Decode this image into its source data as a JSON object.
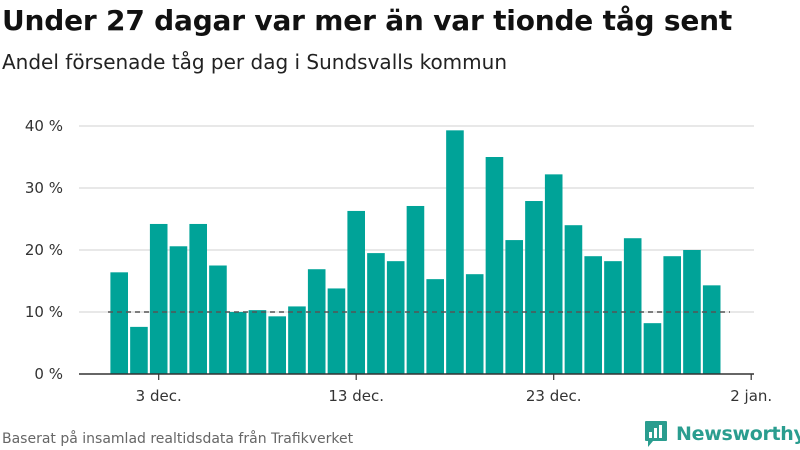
{
  "header": {
    "title": "Under 27 dagar var mer än var tionde tåg sent",
    "subtitle": "Andel försenade tåg per dag i Sundsvalls kommun"
  },
  "footer": {
    "source": "Baserat på insamlad realtidsdata från Trafikverket",
    "brand": "Newsworthy"
  },
  "colors": {
    "bar": "#00a398",
    "grid": "#d9d9d9",
    "axis": "#333333",
    "reference_line": "#555555",
    "brand": "#2a9d8f"
  },
  "chart_data": {
    "type": "bar",
    "title": "Under 27 dagar var mer än var tionde tåg sent",
    "subtitle": "Andel försenade tåg per dag i Sundsvalls kommun",
    "xlabel": "",
    "ylabel": "",
    "ylim": [
      0,
      40
    ],
    "yticks": [
      0,
      10,
      20,
      30,
      40
    ],
    "ytick_labels": [
      "0 %",
      "10 %",
      "20 %",
      "30 %",
      "40 %"
    ],
    "xtick_labels": [
      "3 dec.",
      "13 dec.",
      "23 dec.",
      "2 jan."
    ],
    "xtick_positions": [
      2,
      12,
      22,
      32
    ],
    "x_range": [
      -0.8,
      30.8
    ],
    "grid": true,
    "reference_line": 10,
    "categories": [
      "1 dec.",
      "2 dec.",
      "3 dec.",
      "4 dec.",
      "5 dec.",
      "6 dec.",
      "7 dec.",
      "8 dec.",
      "9 dec.",
      "10 dec.",
      "11 dec.",
      "12 dec.",
      "13 dec.",
      "14 dec.",
      "15 dec.",
      "16 dec.",
      "17 dec.",
      "18 dec.",
      "19 dec.",
      "20 dec.",
      "21 dec.",
      "22 dec.",
      "23 dec.",
      "24 dec.",
      "25 dec.",
      "26 dec.",
      "27 dec.",
      "28 dec.",
      "29 dec.",
      "30 dec.",
      "31 dec."
    ],
    "values": [
      16.4,
      7.6,
      24.2,
      20.6,
      24.2,
      17.5,
      10.0,
      10.3,
      9.3,
      10.9,
      16.9,
      13.8,
      26.3,
      19.5,
      18.2,
      27.1,
      15.3,
      39.3,
      16.1,
      35.0,
      21.6,
      27.9,
      32.2,
      24.0,
      19.0,
      18.2,
      21.9,
      8.2,
      19.0,
      20.0,
      14.3
    ]
  }
}
